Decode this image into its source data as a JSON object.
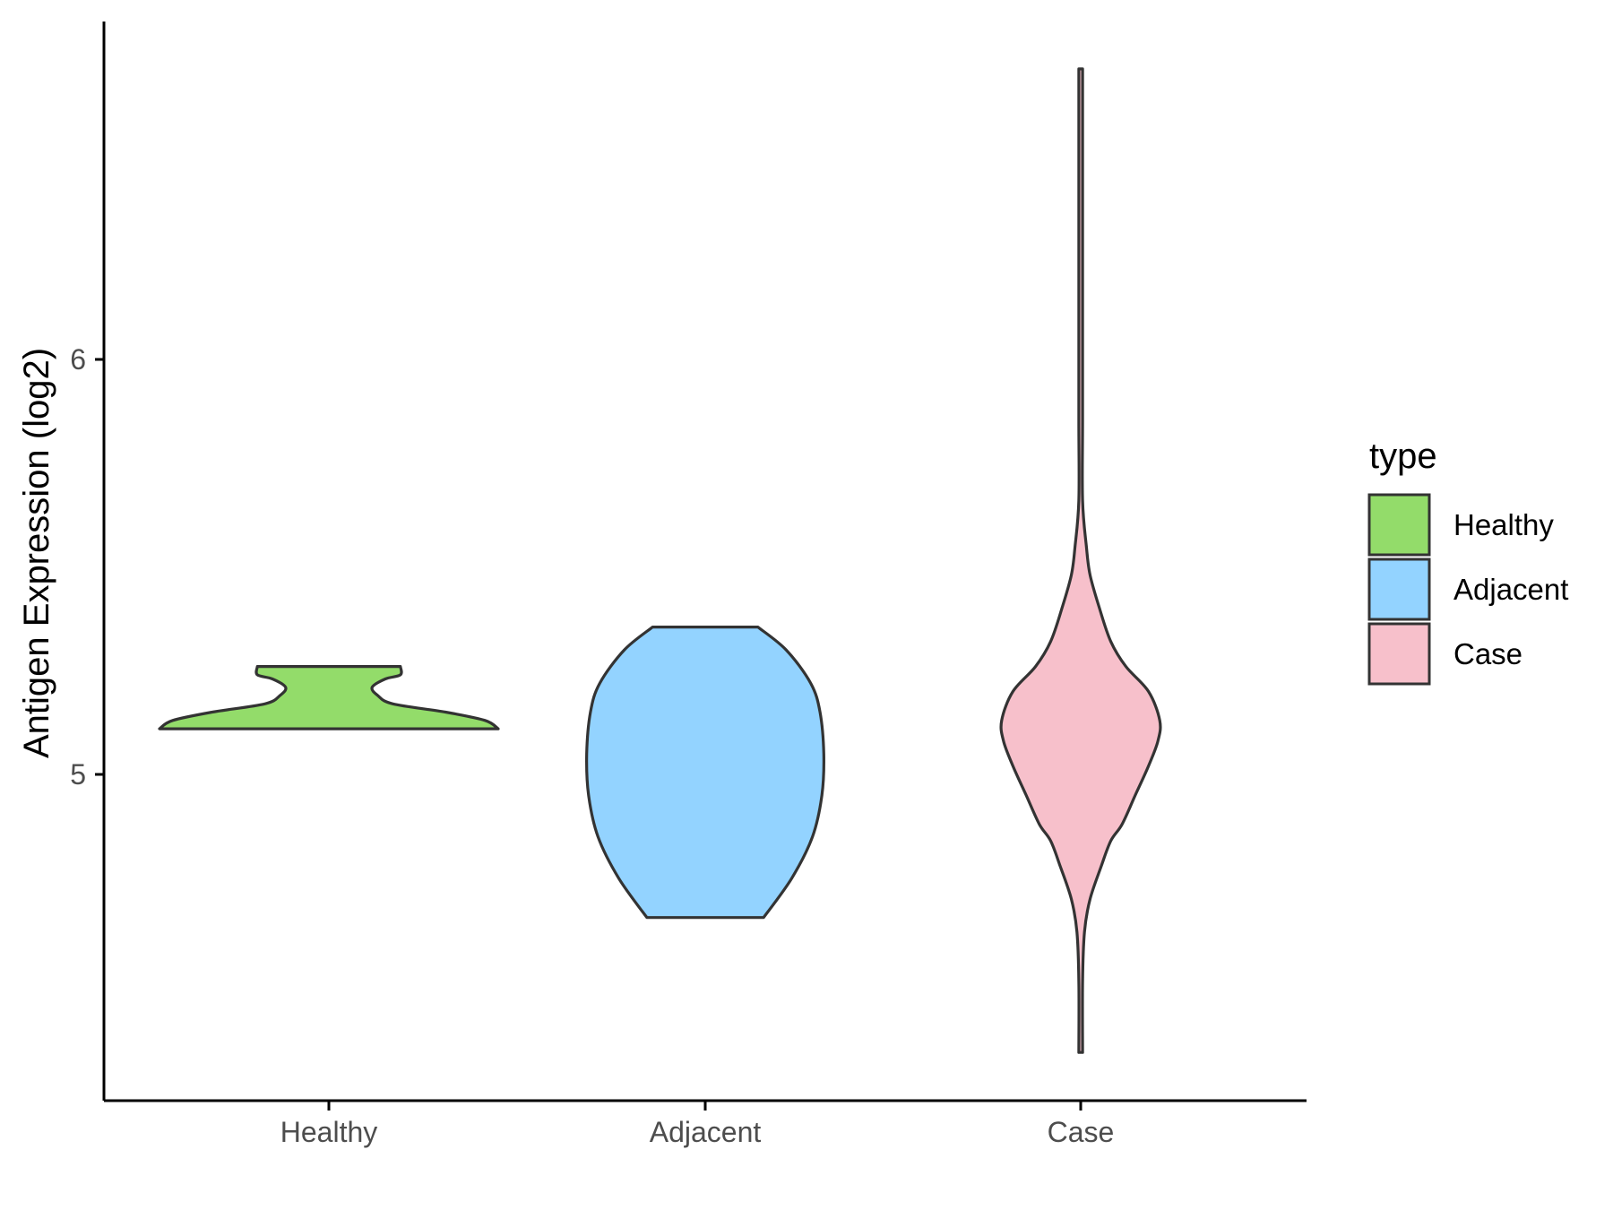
{
  "chart_data": {
    "type": "violin",
    "title": "",
    "xlabel": "",
    "ylabel": "Antigen Expression (log2)",
    "categories": [
      "Healthy",
      "Adjacent",
      "Case"
    ],
    "yticks": [
      5,
      6
    ],
    "ylim": [
      4.21,
      6.82
    ],
    "grid": false,
    "legend": {
      "title": "type",
      "position": "right",
      "entries": [
        "Healthy",
        "Adjacent",
        "Case"
      ]
    },
    "colors": {
      "Healthy": "#93dc6a",
      "Adjacent": "#93d3ff",
      "Case": "#f7c0cb",
      "outline": "#333333"
    },
    "series": [
      {
        "name": "Healthy",
        "min": 5.11,
        "max": 5.26,
        "profile": [
          [
            5.11,
            0.9
          ],
          [
            5.13,
            0.83
          ],
          [
            5.15,
            0.62
          ],
          [
            5.17,
            0.34
          ],
          [
            5.19,
            0.26
          ],
          [
            5.21,
            0.23
          ],
          [
            5.23,
            0.3
          ],
          [
            5.24,
            0.38
          ],
          [
            5.26,
            0.38
          ]
        ]
      },
      {
        "name": "Adjacent",
        "min": 4.655,
        "max": 5.355,
        "profile": [
          [
            4.655,
            0.31
          ],
          [
            4.75,
            0.46
          ],
          [
            4.85,
            0.57
          ],
          [
            4.95,
            0.62
          ],
          [
            5.05,
            0.63
          ],
          [
            5.15,
            0.61
          ],
          [
            5.22,
            0.56
          ],
          [
            5.3,
            0.43
          ],
          [
            5.355,
            0.28
          ]
        ]
      },
      {
        "name": "Case",
        "min": 4.33,
        "max": 6.7,
        "profile": [
          [
            4.33,
            0.01
          ],
          [
            4.5,
            0.01
          ],
          [
            4.62,
            0.02
          ],
          [
            4.7,
            0.05
          ],
          [
            4.78,
            0.11
          ],
          [
            4.84,
            0.16
          ],
          [
            4.88,
            0.22
          ],
          [
            4.95,
            0.29
          ],
          [
            5.02,
            0.36
          ],
          [
            5.08,
            0.41
          ],
          [
            5.13,
            0.42
          ],
          [
            5.2,
            0.36
          ],
          [
            5.26,
            0.24
          ],
          [
            5.32,
            0.16
          ],
          [
            5.4,
            0.1
          ],
          [
            5.48,
            0.05
          ],
          [
            5.55,
            0.03
          ],
          [
            5.66,
            0.01
          ],
          [
            5.85,
            0.01
          ],
          [
            6.1,
            0.01
          ],
          [
            6.4,
            0.01
          ],
          [
            6.7,
            0.01
          ]
        ]
      }
    ]
  }
}
